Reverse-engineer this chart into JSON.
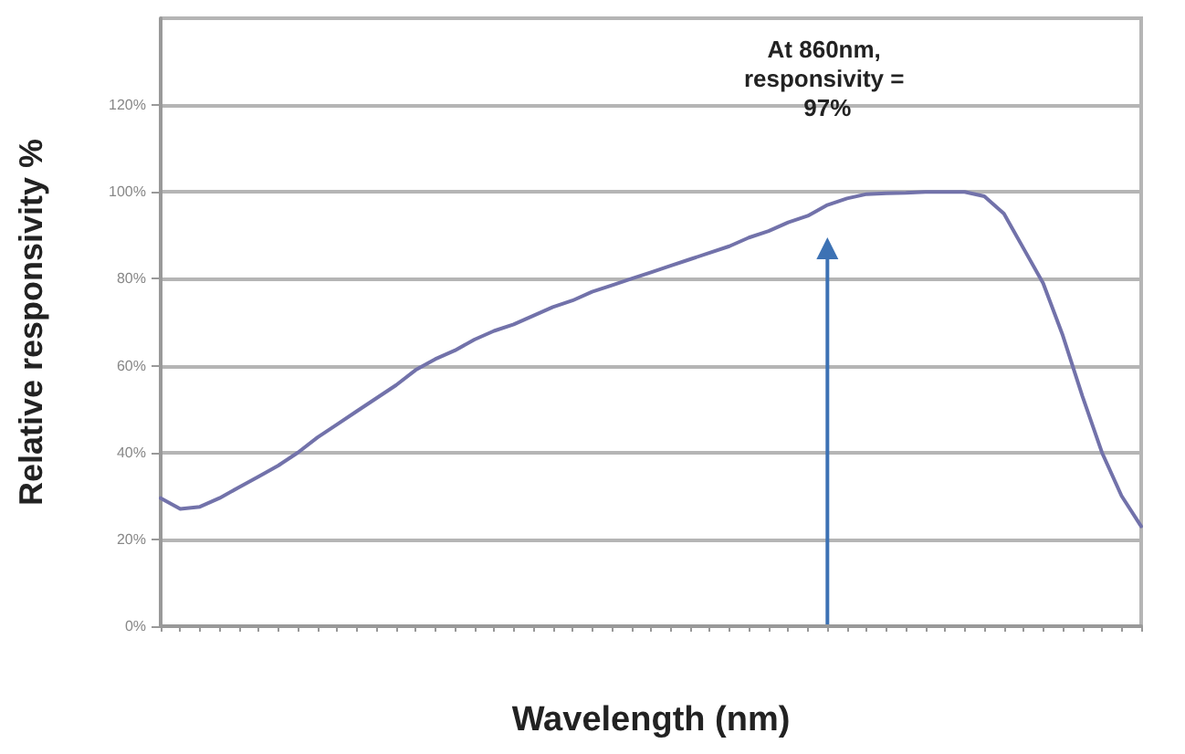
{
  "chart_data": {
    "type": "line",
    "xlabel": "Wavelength (nm)",
    "ylabel": "Relative responsivity %",
    "categories": [
      null,
      null,
      null,
      null,
      null,
      null,
      null,
      null,
      null,
      null,
      null,
      null,
      null,
      null,
      null,
      null,
      null,
      null,
      null,
      null,
      null,
      null,
      null,
      null,
      null,
      null,
      null,
      null,
      null,
      null,
      null,
      null,
      null,
      null,
      null,
      null,
      null,
      null,
      null,
      null,
      null,
      null,
      null,
      null,
      null,
      null,
      null,
      null,
      null,
      null,
      null
    ],
    "series": [
      {
        "color": "#7272aa",
        "values": [
          29.5,
          27,
          27.5,
          29.5,
          32,
          34.5,
          37,
          40,
          43.5,
          46.5,
          49.5,
          52.5,
          55.5,
          59,
          61.5,
          63.5,
          66,
          68,
          69.5,
          71.5,
          73.5,
          75,
          77,
          78.5,
          80,
          81.5,
          83,
          84.5,
          86,
          87.5,
          89.5,
          91,
          93,
          94.5,
          97,
          98.5,
          99.5,
          99.7,
          99.8,
          100,
          100,
          100,
          99,
          95,
          87,
          79,
          67,
          53,
          40,
          30,
          23
        ]
      }
    ],
    "ylim": [
      0,
      140
    ],
    "yticks": [
      {
        "value": 0,
        "label": "0%"
      },
      {
        "value": 20,
        "label": "20%"
      },
      {
        "value": 40,
        "label": "40%"
      },
      {
        "value": 60,
        "label": "60%"
      },
      {
        "value": 80,
        "label": "80%"
      },
      {
        "value": 100,
        "label": "100%"
      },
      {
        "value": 120,
        "label": "120%"
      }
    ],
    "grid": "y",
    "marker": "none",
    "line_style": "solid",
    "annotations": [
      "At 860nm, responsivity = 97%"
    ]
  }
}
